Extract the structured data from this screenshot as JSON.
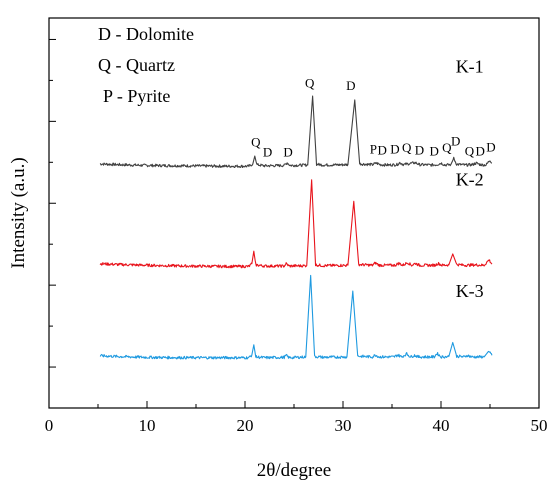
{
  "chart_data": {
    "type": "line",
    "title": "",
    "xlabel": "2θ/degree",
    "ylabel": "Intensity (a.u.)",
    "xlim": [
      0,
      50
    ],
    "ylim": [
      0,
      100
    ],
    "x_ticks": [
      "0",
      "10",
      "20",
      "30",
      "40",
      "50"
    ],
    "y_tick_labels_shown": false,
    "grid": false,
    "legend": {
      "placement": "top-left",
      "entries": [
        "D - Dolomite",
        "Q - Quartz",
        "P  - Pyrite"
      ]
    },
    "series": [
      {
        "name": "K-1",
        "color": "#404040",
        "baseline": 62,
        "label_at": [
          41.5,
          86
        ],
        "points": [
          [
            5.2,
            62.6
          ],
          [
            7,
            62.4
          ],
          [
            10,
            62.2
          ],
          [
            14,
            62.1
          ],
          [
            18,
            62.0
          ],
          [
            20.4,
            62.0
          ],
          [
            20.8,
            62.6
          ],
          [
            21.0,
            64.6
          ],
          [
            21.2,
            62.4
          ],
          [
            22.0,
            62.1
          ],
          [
            24.0,
            62.2
          ],
          [
            24.3,
            62.9
          ],
          [
            24.6,
            62.2
          ],
          [
            26.4,
            62.3
          ],
          [
            26.9,
            80
          ],
          [
            27.3,
            62.5
          ],
          [
            28,
            62.3
          ],
          [
            30.5,
            62.4
          ],
          [
            31.2,
            79
          ],
          [
            31.7,
            62.6
          ],
          [
            33.0,
            62.4
          ],
          [
            33.4,
            62.8
          ],
          [
            33.8,
            62.4
          ],
          [
            34.6,
            62.3
          ],
          [
            35.5,
            62.4
          ],
          [
            35.8,
            62.9
          ],
          [
            36.2,
            62.4
          ],
          [
            36.6,
            62.6
          ],
          [
            37.4,
            62.9
          ],
          [
            37.8,
            62.4
          ],
          [
            39.0,
            62.3
          ],
          [
            39.6,
            62.4
          ],
          [
            40.0,
            62.8
          ],
          [
            40.4,
            62.3
          ],
          [
            41.0,
            62.4
          ],
          [
            41.3,
            64.0
          ],
          [
            41.6,
            62.5
          ],
          [
            42.5,
            62.3
          ],
          [
            43.2,
            62.4
          ],
          [
            43.6,
            62.8
          ],
          [
            44.0,
            62.4
          ],
          [
            44.6,
            62.3
          ],
          [
            45.0,
            63.6
          ],
          [
            45.2,
            62.8
          ]
        ]
      },
      {
        "name": "K-2",
        "color": "#e8141c",
        "baseline": 36.5,
        "label_at": [
          41.5,
          57
        ],
        "points": [
          [
            5.2,
            37.0
          ],
          [
            7,
            36.8
          ],
          [
            10,
            36.6
          ],
          [
            14,
            36.4
          ],
          [
            18,
            36.3
          ],
          [
            20.4,
            36.3
          ],
          [
            20.7,
            37.0
          ],
          [
            20.9,
            40.2
          ],
          [
            21.1,
            36.7
          ],
          [
            22.0,
            36.4
          ],
          [
            24.0,
            36.4
          ],
          [
            24.2,
            37.0
          ],
          [
            24.5,
            36.4
          ],
          [
            26.3,
            36.5
          ],
          [
            26.8,
            58.5
          ],
          [
            27.2,
            36.7
          ],
          [
            28,
            36.5
          ],
          [
            30.5,
            36.6
          ],
          [
            31.1,
            53
          ],
          [
            31.6,
            36.8
          ],
          [
            33.0,
            36.6
          ],
          [
            33.3,
            37.2
          ],
          [
            33.7,
            36.6
          ],
          [
            35.3,
            36.6
          ],
          [
            35.7,
            37.1
          ],
          [
            36.1,
            36.6
          ],
          [
            36.6,
            37.3
          ],
          [
            37.0,
            36.6
          ],
          [
            37.4,
            37.1
          ],
          [
            37.8,
            36.6
          ],
          [
            39.4,
            36.6
          ],
          [
            39.7,
            37.1
          ],
          [
            40.1,
            36.6
          ],
          [
            40.8,
            36.7
          ],
          [
            41.2,
            39.5
          ],
          [
            41.6,
            36.8
          ],
          [
            42.5,
            36.6
          ],
          [
            43.5,
            36.7
          ],
          [
            44.4,
            36.6
          ],
          [
            44.9,
            38.0
          ],
          [
            45.2,
            36.9
          ]
        ]
      },
      {
        "name": "K-3",
        "color": "#1f9ae0",
        "baseline": 12.8,
        "label_at": [
          41.5,
          28.5
        ],
        "points": [
          [
            5.2,
            13.4
          ],
          [
            7,
            13.2
          ],
          [
            10,
            13.0
          ],
          [
            14,
            12.9
          ],
          [
            18,
            12.9
          ],
          [
            20.4,
            12.9
          ],
          [
            20.7,
            13.6
          ],
          [
            20.9,
            16.2
          ],
          [
            21.1,
            13.1
          ],
          [
            22.0,
            12.9
          ],
          [
            24.0,
            13.0
          ],
          [
            24.2,
            13.5
          ],
          [
            24.5,
            12.9
          ],
          [
            26.2,
            13.1
          ],
          [
            26.7,
            34
          ],
          [
            27.1,
            13.2
          ],
          [
            28,
            13.0
          ],
          [
            30.4,
            13.1
          ],
          [
            31.0,
            30
          ],
          [
            31.5,
            13.3
          ],
          [
            33.0,
            13.1
          ],
          [
            33.3,
            13.6
          ],
          [
            33.7,
            13.1
          ],
          [
            35.2,
            13.1
          ],
          [
            35.6,
            13.6
          ],
          [
            36.0,
            13.1
          ],
          [
            36.5,
            13.9
          ],
          [
            36.9,
            13.1
          ],
          [
            37.3,
            13.5
          ],
          [
            37.7,
            13.1
          ],
          [
            39.3,
            13.1
          ],
          [
            39.6,
            14.0
          ],
          [
            40.0,
            13.1
          ],
          [
            40.8,
            13.2
          ],
          [
            41.2,
            16.8
          ],
          [
            41.6,
            13.3
          ],
          [
            42.4,
            13.1
          ],
          [
            42.7,
            13.5
          ],
          [
            43.1,
            13.1
          ],
          [
            44.4,
            13.1
          ],
          [
            44.9,
            14.7
          ],
          [
            45.2,
            13.5
          ]
        ]
      }
    ],
    "annotations": [
      {
        "text": "Q",
        "x": 21.1,
        "y": 67
      },
      {
        "text": "D",
        "x": 22.3,
        "y": 64.5
      },
      {
        "text": "D",
        "x": 24.4,
        "y": 64.5
      },
      {
        "text": "Q",
        "x": 26.6,
        "y": 82.2
      },
      {
        "text": "D",
        "x": 30.8,
        "y": 81.5
      },
      {
        "text": "P",
        "x": 33.1,
        "y": 65.3
      },
      {
        "text": "D",
        "x": 34.0,
        "y": 65.0
      },
      {
        "text": "D",
        "x": 35.3,
        "y": 65.3
      },
      {
        "text": "Q",
        "x": 36.5,
        "y": 65.6
      },
      {
        "text": "D",
        "x": 37.8,
        "y": 65.0
      },
      {
        "text": "D",
        "x": 39.3,
        "y": 64.8
      },
      {
        "text": "Q",
        "x": 40.6,
        "y": 65.6
      },
      {
        "text": "D",
        "x": 41.5,
        "y": 67.3
      },
      {
        "text": "Q",
        "x": 42.9,
        "y": 64.8
      },
      {
        "text": "D",
        "x": 44.0,
        "y": 64.8
      },
      {
        "text": "D",
        "x": 45.1,
        "y": 65.8
      }
    ]
  }
}
